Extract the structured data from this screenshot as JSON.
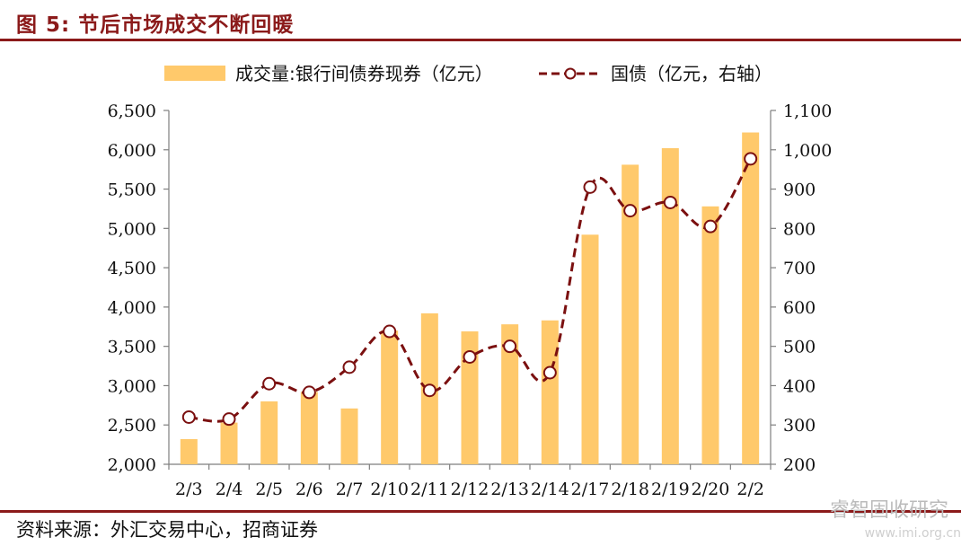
{
  "title": "图 5:  节后市场成交不断回暖",
  "source": "资料来源：外汇交易中心，招商证券",
  "watermark": "睿智固收研究",
  "watermark_url": "www.imi.org.cn",
  "colors": {
    "bar": "#FFC96B",
    "line": "#7B1010",
    "rule": "#8B1A1A"
  },
  "chart_data": {
    "type": "bar+line",
    "categories": [
      "2/3",
      "2/4",
      "2/5",
      "2/6",
      "2/7",
      "2/10",
      "2/11",
      "2/12",
      "2/13",
      "2/14",
      "2/17",
      "2/18",
      "2/19",
      "2/20",
      "2/21"
    ],
    "tick_labels": [
      "2/3",
      "2/4",
      "2/5",
      "2/6",
      "2/7",
      "2/10",
      "2/11",
      "2/12",
      "2/13",
      "2/14",
      "2/17",
      "2/18",
      "2/19",
      "2/20",
      "2/2"
    ],
    "series": [
      {
        "name": "成交量:银行间债券现券（亿元）",
        "type": "bar",
        "axis": "left",
        "values": [
          2320,
          2530,
          2800,
          2920,
          2710,
          3700,
          3920,
          3690,
          3780,
          3830,
          4920,
          5810,
          6020,
          5280,
          6220
        ]
      },
      {
        "name": "国债（亿元，右轴）",
        "type": "line",
        "axis": "right",
        "values": [
          320,
          315,
          405,
          383,
          447,
          538,
          388,
          473,
          500,
          433,
          905,
          845,
          866,
          805,
          977
        ]
      }
    ],
    "y_left": {
      "min": 2000,
      "max": 6500,
      "step": 500,
      "ticks": [
        "2,000",
        "2,500",
        "3,000",
        "3,500",
        "4,000",
        "4,500",
        "5,000",
        "5,500",
        "6,000",
        "6,500"
      ]
    },
    "y_right": {
      "min": 200,
      "max": 1100,
      "step": 100,
      "ticks": [
        "200",
        "300",
        "400",
        "500",
        "600",
        "700",
        "800",
        "900",
        "1,000",
        "1,100"
      ]
    },
    "legend_position": "top",
    "grid": false
  }
}
